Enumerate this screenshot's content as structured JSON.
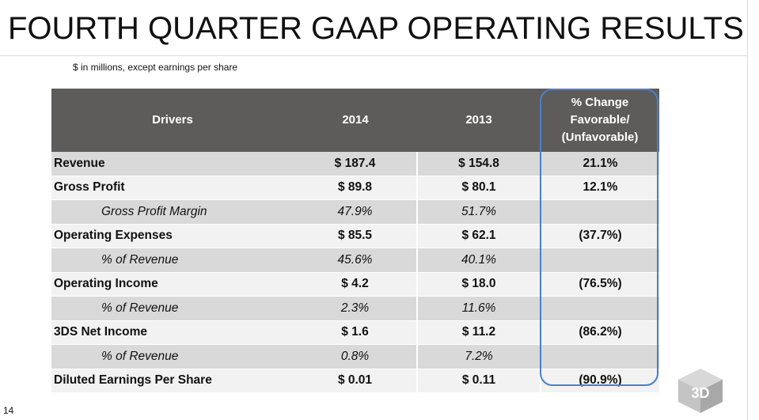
{
  "title": "FOURTH QUARTER GAAP OPERATING RESULTS",
  "subtitle": "$ in millions, except earnings per share",
  "table": {
    "headers": {
      "drivers": "Drivers",
      "y2014": "2014",
      "y2013": "2013",
      "change_lines": [
        "% Change",
        "Favorable/",
        "(Unfavorable)"
      ]
    },
    "rows": [
      {
        "label": "Revenue",
        "y2014": "$ 187.4",
        "y2013": "$ 154.8",
        "change": "21.1%"
      },
      {
        "label": "Gross Profit",
        "y2014": "$ 89.8",
        "y2013": "$ 80.1",
        "change": "12.1%"
      },
      {
        "label": "Gross Profit Margin",
        "y2014": "47.9%",
        "y2013": "51.7%",
        "change": ""
      },
      {
        "label": "Operating Expenses",
        "y2014": "$ 85.5",
        "y2013": "$ 62.1",
        "change": "(37.7%)"
      },
      {
        "label": "% of Revenue",
        "y2014": "45.6%",
        "y2013": "40.1%",
        "change": ""
      },
      {
        "label": "Operating Income",
        "y2014": "$ 4.2",
        "y2013": "$ 18.0",
        "change": "(76.5%)"
      },
      {
        "label": "% of Revenue",
        "y2014": "2.3%",
        "y2013": "11.6%",
        "change": ""
      },
      {
        "label": "3DS Net Income",
        "y2014": "$ 1.6",
        "y2013": "$ 11.2",
        "change": "(86.2%)"
      },
      {
        "label": "% of Revenue",
        "y2014": "0.8%",
        "y2013": "7.2%",
        "change": ""
      },
      {
        "label": "Diluted Earnings Per Share",
        "y2014": "$ 0.01",
        "y2013": "$ 0.11",
        "change": "(90.9%)"
      }
    ]
  },
  "page_number": "14",
  "logo": {
    "name": "3d-systems-logo",
    "text": "3D"
  },
  "colors": {
    "header_bg": "#5e5b5b",
    "row_shaded": "#d9d9d9",
    "row_plain": "#f2f2f2",
    "highlight_border": "#4a80c8"
  }
}
